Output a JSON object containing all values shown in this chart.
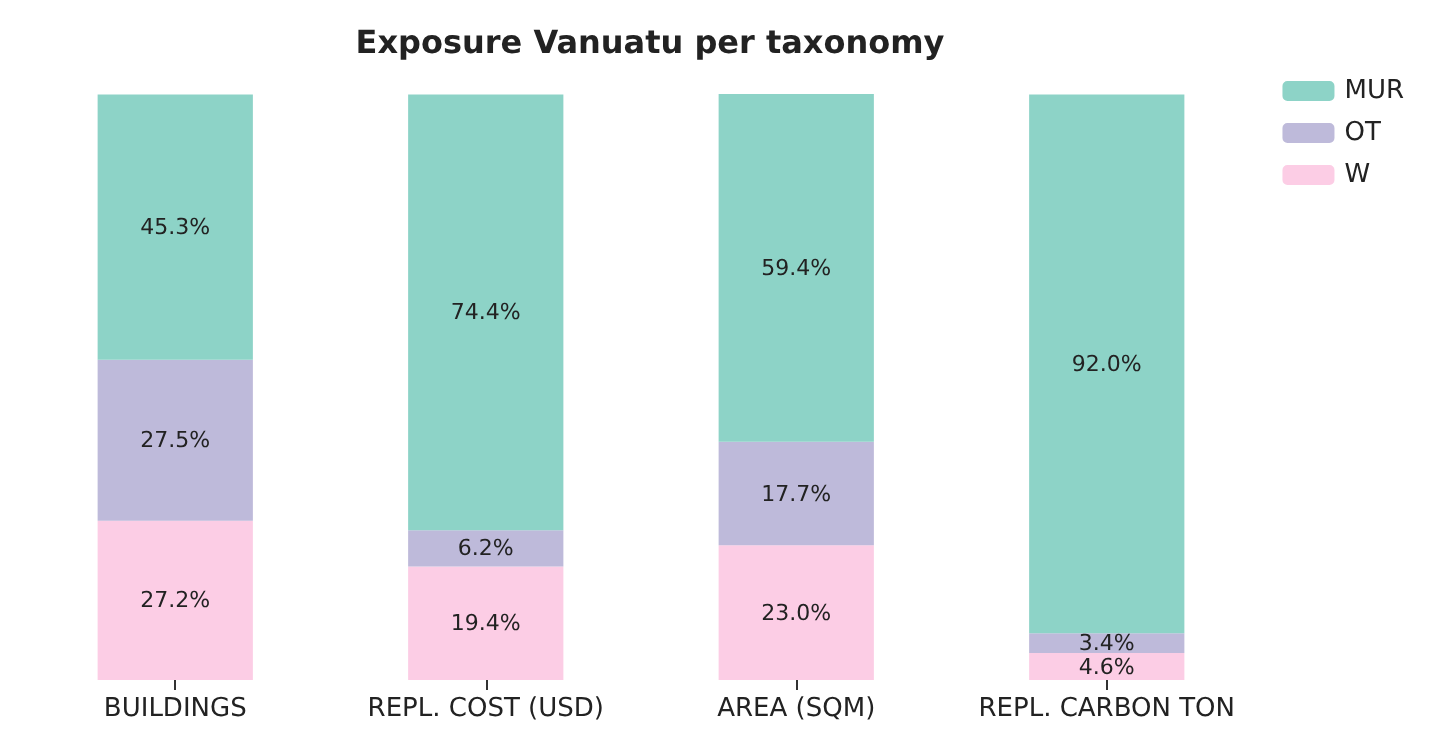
{
  "chart_data": {
    "type": "bar",
    "title": "Exposure Vanuatu per taxonomy",
    "categories": [
      "BUILDINGS",
      "REPL. COST (USD)",
      "AREA (SQM)",
      "REPL. CARBON TON"
    ],
    "stacked": true,
    "legend": "top right",
    "series": [
      {
        "name": "W",
        "color": "#fccde5",
        "values": [
          27.2,
          19.4,
          23.0,
          4.6
        ],
        "value_labels": [
          "27.2%",
          "19.4%",
          "23.0%",
          "4.6%"
        ]
      },
      {
        "name": "OT",
        "color": "#bebada",
        "values": [
          27.5,
          6.2,
          17.7,
          3.4
        ],
        "value_labels": [
          "27.5%",
          "6.2%",
          "17.7%",
          "3.4%"
        ]
      },
      {
        "name": "MUR",
        "color": "#8dd3c7",
        "values": [
          45.3,
          74.4,
          59.4,
          92.0
        ],
        "value_labels": [
          "45.3%",
          "74.4%",
          "59.4%",
          "92.0%"
        ]
      }
    ]
  }
}
